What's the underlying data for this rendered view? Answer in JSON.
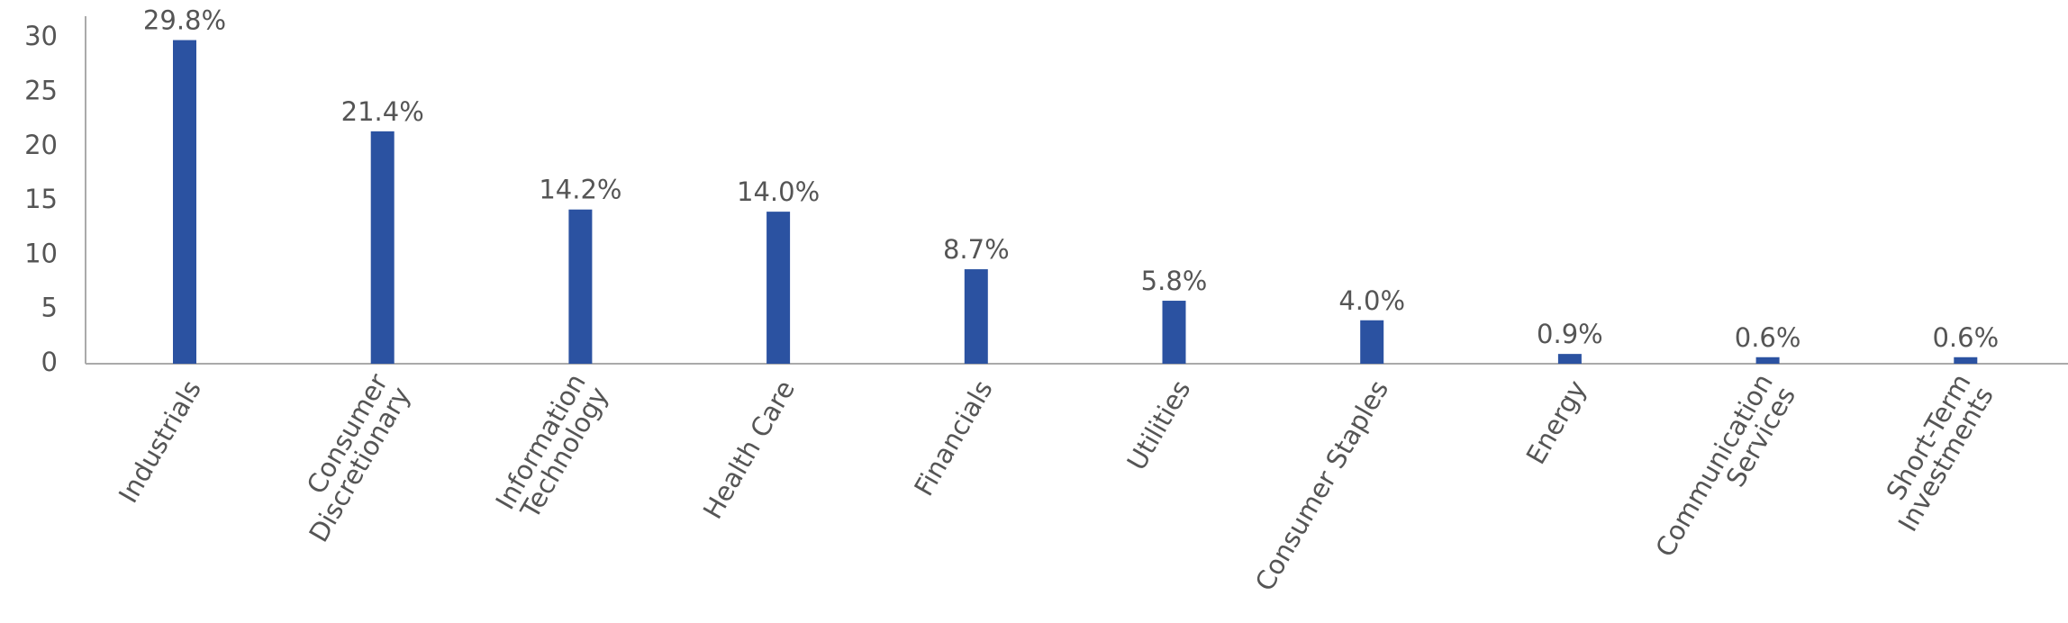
{
  "chart_data": {
    "type": "bar",
    "categories": [
      "Industrials",
      "Consumer\nDiscretionary",
      "Information\nTechnology",
      "Health Care",
      "Financials",
      "Utilities",
      "Consumer Staples",
      "Energy",
      "Communication\nServices",
      "Short-Term\nInvestments"
    ],
    "values": [
      29.8,
      21.4,
      14.2,
      14.0,
      8.7,
      5.8,
      4.0,
      0.9,
      0.6,
      0.6
    ],
    "value_labels": [
      "29.8%",
      "21.4%",
      "14.2%",
      "14.0%",
      "8.7%",
      "5.8%",
      "4.0%",
      "0.9%",
      "0.6%",
      "0.6%"
    ],
    "color": "#2b52a1",
    "ylim": [
      0,
      32
    ],
    "yticks": [
      0,
      5,
      10,
      15,
      20,
      25,
      30
    ],
    "grid": false
  }
}
